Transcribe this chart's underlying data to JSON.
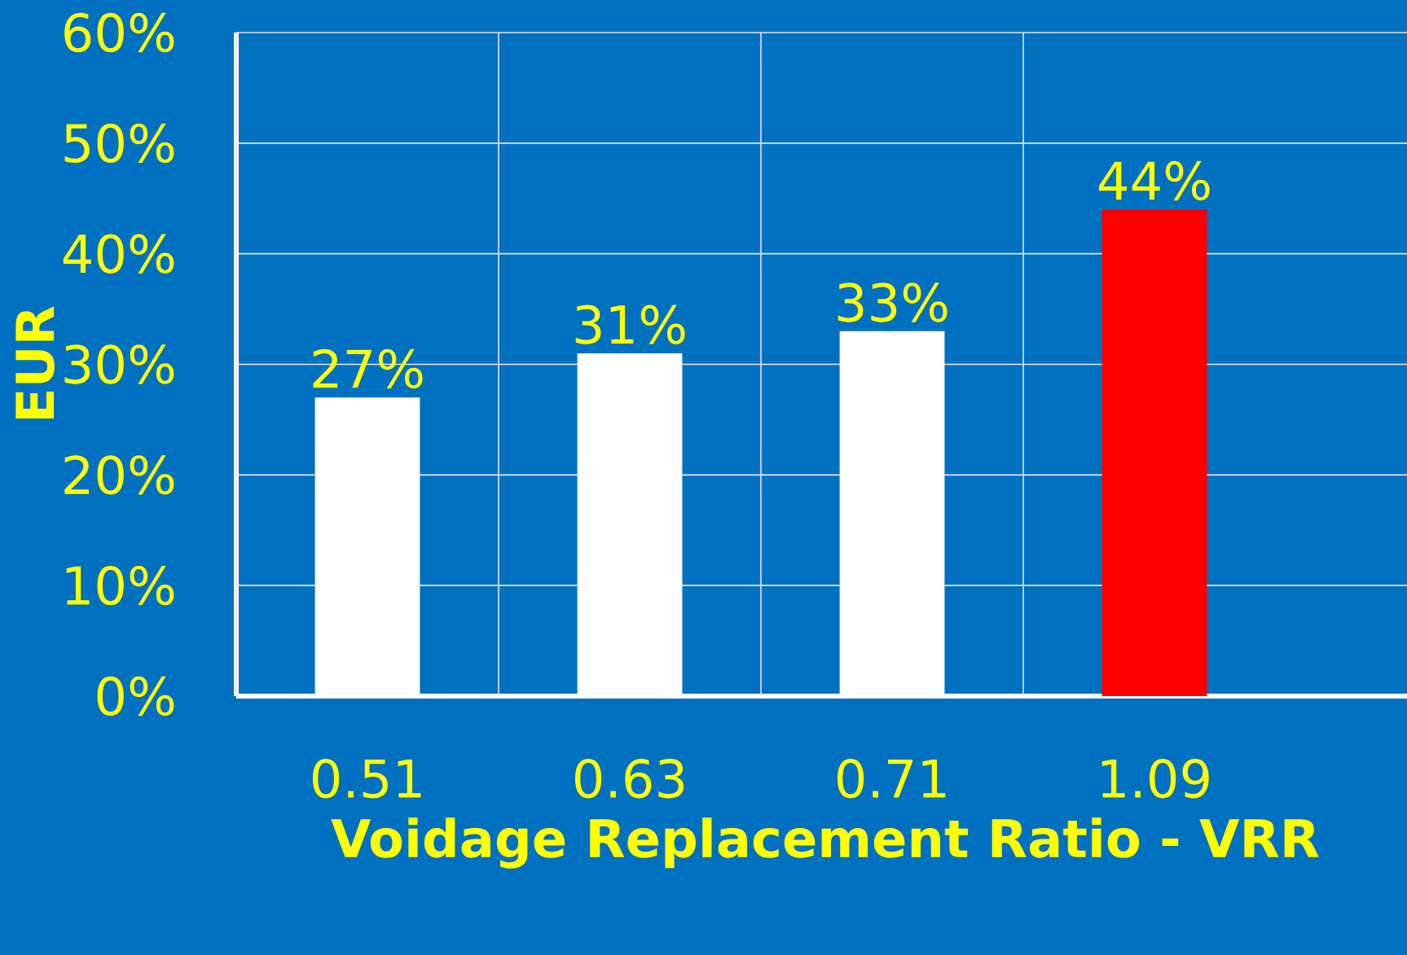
{
  "chart_data": {
    "type": "bar",
    "xlabel": "Voidage Replacement Ratio - VRR",
    "ylabel": "EUR",
    "categories": [
      "0.51",
      "0.63",
      "0.71",
      "1.09"
    ],
    "values": [
      27,
      31,
      33,
      44
    ],
    "colors": [
      "#ffffff",
      "#ffffff",
      "#ffffff",
      "#ff0000"
    ],
    "value_labels": [
      "27%",
      "31%",
      "33%",
      "44%"
    ],
    "ylim": [
      0,
      60
    ],
    "yticks": [
      {
        "value": 0,
        "label": "0%"
      },
      {
        "value": 10,
        "label": "10%"
      },
      {
        "value": 20,
        "label": "20%"
      },
      {
        "value": 30,
        "label": "30%"
      },
      {
        "value": 40,
        "label": "40%"
      },
      {
        "value": 50,
        "label": "50%"
      },
      {
        "value": 60,
        "label": "60%"
      }
    ],
    "grid": true
  }
}
